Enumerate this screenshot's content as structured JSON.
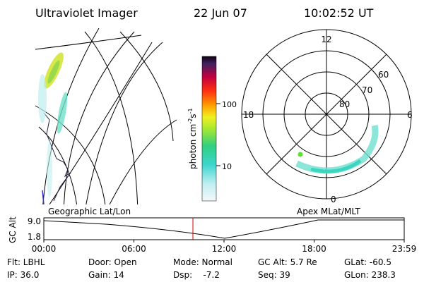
{
  "header": {
    "title": "Ultraviolet Imager",
    "date": "22 Jun 07",
    "time": "10:02:52 UT"
  },
  "colorbar": {
    "label": {
      "text": "photon cm",
      "exp1": "-2",
      "unit2": "s",
      "exp2": "-1"
    },
    "ticks": [
      "100",
      "10"
    ]
  },
  "polar_plot": {
    "mlt_labels": [
      "12",
      "18",
      "6",
      "0"
    ],
    "lat_labels": [
      "60",
      "70",
      "80"
    ]
  },
  "projections": {
    "left": "Geographic Lat/Lon",
    "right": "Apex MLat/MLT"
  },
  "altitude_strip": {
    "axis_label": "GC Alt",
    "yticks": [
      "9.0",
      "1.8"
    ],
    "xticks": [
      "00:00",
      "06:00",
      "12:00",
      "18:00",
      "23:59"
    ]
  },
  "info": [
    [
      "Flt: LBHL",
      "Door: Open",
      "Mode: Normal",
      "GC Alt: 5.7 Re",
      "GLat: -60.5"
    ],
    [
      "IP: 36.0",
      "Gain: 14",
      "Dsp:    -7.2",
      "Seq: 39",
      "GLon: 238.3"
    ]
  ]
}
